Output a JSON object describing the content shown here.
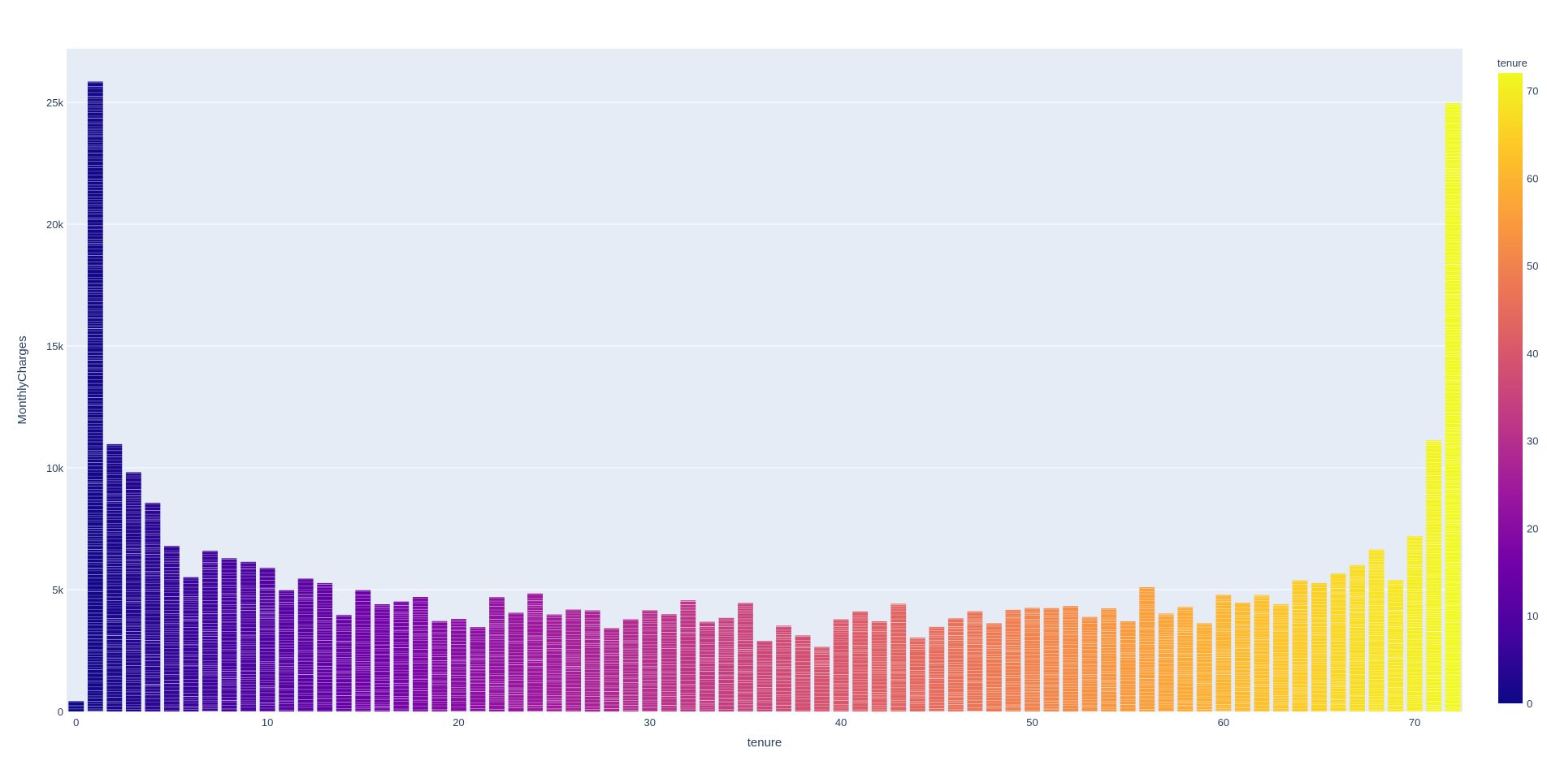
{
  "chart_data": {
    "type": "bar",
    "xlabel": "tenure",
    "ylabel": "MonthlyCharges",
    "xlim": [
      -0.5,
      72.5
    ],
    "ylim": [
      0,
      27200
    ],
    "x_ticks": [
      0,
      10,
      20,
      30,
      40,
      50,
      60,
      70
    ],
    "y_ticks": [
      0,
      5000,
      10000,
      15000,
      20000,
      25000
    ],
    "y_tick_labels": [
      "0",
      "5k",
      "10k",
      "15k",
      "20k",
      "25k"
    ],
    "grid": true,
    "plot_background": "#E5ECF6",
    "colorbar": {
      "title": "tenure",
      "ticks": [
        0,
        10,
        20,
        30,
        40,
        50,
        60,
        70
      ],
      "range": [
        0,
        72
      ],
      "colorscale": [
        "#0d0887",
        "#46039f",
        "#7201a8",
        "#9c179e",
        "#bd3786",
        "#d8576b",
        "#ed7953",
        "#fb9f3a",
        "#fdca26",
        "#f0f921"
      ]
    },
    "x": [
      0,
      1,
      2,
      3,
      4,
      5,
      6,
      7,
      8,
      9,
      10,
      11,
      12,
      13,
      14,
      15,
      16,
      17,
      18,
      19,
      20,
      21,
      22,
      23,
      24,
      25,
      26,
      27,
      28,
      29,
      30,
      31,
      32,
      33,
      34,
      35,
      36,
      37,
      38,
      39,
      40,
      41,
      42,
      43,
      44,
      45,
      46,
      47,
      48,
      49,
      50,
      51,
      52,
      53,
      54,
      55,
      56,
      57,
      58,
      59,
      60,
      61,
      62,
      63,
      64,
      65,
      66,
      67,
      68,
      69,
      70,
      71,
      72
    ],
    "values": [
      420,
      25850,
      10970,
      9820,
      8560,
      6790,
      5510,
      6590,
      6290,
      6140,
      5890,
      4980,
      5450,
      5270,
      3960,
      4980,
      4400,
      4510,
      4700,
      3710,
      3800,
      3460,
      4690,
      4050,
      4840,
      3980,
      4180,
      4150,
      3420,
      3780,
      4150,
      3990,
      4560,
      3680,
      3840,
      4450,
      2890,
      3520,
      3120,
      2650,
      3780,
      4100,
      3700,
      4420,
      3030,
      3470,
      3820,
      4110,
      3620,
      4170,
      4250,
      4240,
      4330,
      3880,
      4230,
      3700,
      5100,
      4020,
      4290,
      3620,
      4780,
      4460,
      4780,
      4400,
      5380,
      5270,
      5660,
      6010,
      6650,
      5400,
      7190,
      11130,
      24970
    ]
  }
}
